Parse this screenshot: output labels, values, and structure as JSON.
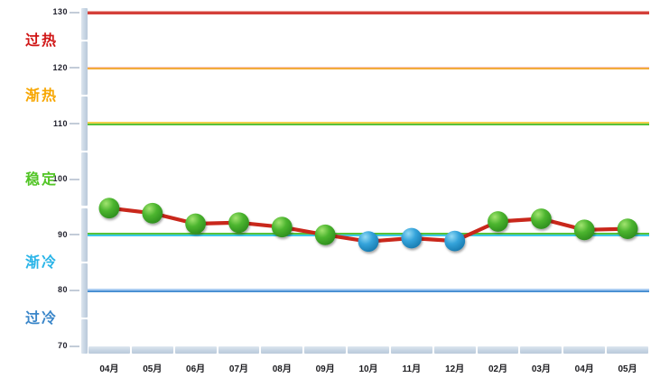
{
  "page": {
    "background": "#ffffff"
  },
  "y_axis": {
    "ticks": [
      "130",
      "120",
      "110",
      "100",
      "90",
      "80",
      "70"
    ]
  },
  "zones": [
    {
      "name": "overheat",
      "label": "过热",
      "color": "#d01616",
      "between": [
        130,
        120
      ]
    },
    {
      "name": "warming",
      "label": "渐热",
      "color": "#f7a600",
      "between": [
        120,
        110
      ]
    },
    {
      "name": "stable",
      "label": "稳定",
      "color": "#52c526",
      "between": [
        110,
        90
      ]
    },
    {
      "name": "cooling",
      "label": "渐冷",
      "color": "#29b4e8",
      "between": [
        90,
        80
      ]
    },
    {
      "name": "overcool",
      "label": "过冷",
      "color": "#3a86c9",
      "between": [
        80,
        70
      ]
    }
  ],
  "chart_data": {
    "type": "line",
    "categories": [
      "04月",
      "05月",
      "06月",
      "07月",
      "08月",
      "09月",
      "10月",
      "11月",
      "12月",
      "02月",
      "03月",
      "04月",
      "05月"
    ],
    "series": [
      {
        "name": "",
        "values": [
          94.8,
          93.9,
          92.0,
          92.2,
          91.4,
          90.0,
          88.8,
          89.4,
          88.9,
          92.4,
          92.9,
          90.9,
          91.1
        ]
      }
    ],
    "marker_colors": [
      "green",
      "green",
      "green",
      "green",
      "green",
      "green",
      "blue",
      "blue",
      "blue",
      "green",
      "green",
      "green",
      "green"
    ],
    "ylim": [
      70,
      130
    ],
    "ytick_interval": 10,
    "grid": false,
    "legend": "none",
    "line_color": "#c9271b",
    "trendlines": [
      {
        "value": 130,
        "stripes": [
          [
            "#eea69f",
            1.3
          ],
          [
            "#d4403a",
            2.2
          ]
        ]
      },
      {
        "value": 120,
        "stripes": [
          [
            "#f8c7bd",
            1.3
          ],
          [
            "#f2ac3a",
            2.2
          ]
        ]
      },
      {
        "value": 110,
        "stripes": [
          [
            "#f2cf4d",
            1.3
          ],
          [
            "#57c23a",
            2.2
          ]
        ]
      },
      {
        "value": 90,
        "stripes": [
          [
            "#57c23a",
            2.0
          ],
          [
            "#3cc9e9",
            2.2
          ]
        ]
      },
      {
        "value": 80,
        "stripes": [
          [
            "#abcdf2",
            1.3
          ],
          [
            "#4a90d3",
            2.2
          ]
        ]
      }
    ],
    "marker_palette": {
      "green": [
        "#a2e470",
        "#4cb52f",
        "#2b8a1c"
      ],
      "blue": [
        "#93daf5",
        "#34a3da",
        "#1677ac"
      ]
    }
  },
  "axis_style": {
    "band_color": "#c6d4e3",
    "tick_color": "#c3ccd8",
    "label_color": "#21212d"
  }
}
